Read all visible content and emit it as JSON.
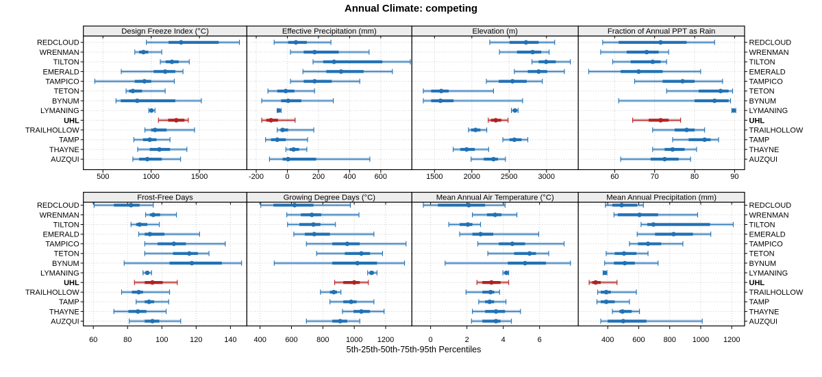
{
  "title": "Annual Climate: competing",
  "footer": "5th-25th-50th-75th-95th Percentiles",
  "highlight_station": "UHL",
  "stations": [
    "REDCLOUD",
    "WRENMAN",
    "TILTON",
    "EMERALD",
    "TAMPICO",
    "TETON",
    "BYNUM",
    "LYMANING",
    "UHL",
    "TRAILHOLLOW",
    "TAMP",
    "THAYNE",
    "AUZQUI"
  ],
  "colors": {
    "series": "#2171B5",
    "highlight": "#B22222",
    "gridline": "#C9C9C9",
    "header_fill": "#EDEDED",
    "border": "#000000",
    "text": "#000000"
  },
  "chart_data": {
    "type": "interval",
    "percentiles": [
      "5th",
      "25th",
      "50th",
      "75th",
      "95th"
    ],
    "layout": {
      "rows": 2,
      "cols": 4
    },
    "panels": [
      {
        "title": "Design Freeze Index (°C)",
        "xlim": [
          297,
          1992
        ],
        "ticks": [
          500,
          1000,
          1500
        ],
        "values": [
          [
            950,
            1180,
            1310,
            1700,
            1915
          ],
          [
            830,
            875,
            920,
            970,
            1110
          ],
          [
            1095,
            1150,
            1215,
            1285,
            1395
          ],
          [
            690,
            1025,
            1145,
            1250,
            1330
          ],
          [
            415,
            830,
            930,
            1000,
            1240
          ],
          [
            740,
            770,
            810,
            905,
            1145
          ],
          [
            635,
            685,
            855,
            1250,
            1520
          ],
          [
            975,
            990,
            1003,
            1015,
            1040
          ],
          [
            1075,
            1175,
            1260,
            1345,
            1385
          ],
          [
            935,
            1000,
            1040,
            1160,
            1450
          ],
          [
            820,
            915,
            985,
            1055,
            1195
          ],
          [
            860,
            985,
            1085,
            1195,
            1370
          ],
          [
            810,
            875,
            960,
            1110,
            1305
          ]
        ]
      },
      {
        "title": "Effective Precipitation (mm)",
        "xlim": [
          -260,
          800
        ],
        "ticks": [
          -200,
          0,
          200,
          400,
          600
        ],
        "values": [
          [
            -85,
            5,
            55,
            125,
            280
          ],
          [
            20,
            105,
            175,
            330,
            525
          ],
          [
            165,
            230,
            300,
            610,
            790
          ],
          [
            100,
            250,
            345,
            490,
            675
          ],
          [
            20,
            105,
            175,
            285,
            465
          ],
          [
            -125,
            -65,
            -10,
            45,
            175
          ],
          [
            -165,
            -40,
            5,
            90,
            295
          ],
          [
            -65,
            -60,
            -55,
            -49,
            -40
          ],
          [
            -165,
            -135,
            -105,
            -60,
            50
          ],
          [
            -65,
            -45,
            -30,
            5,
            170
          ],
          [
            -140,
            -105,
            -65,
            -10,
            130
          ],
          [
            -10,
            15,
            40,
            75,
            125
          ],
          [
            -115,
            -30,
            5,
            185,
            530
          ]
        ]
      },
      {
        "title": "Elevation (m)",
        "xlim": [
          1197,
          3426
        ],
        "ticks": [
          1500,
          2000,
          2500,
          3000
        ],
        "values": [
          [
            2240,
            2505,
            2725,
            2895,
            3110
          ],
          [
            2370,
            2605,
            2815,
            2930,
            3035
          ],
          [
            2805,
            2895,
            2995,
            3125,
            3320
          ],
          [
            2570,
            2750,
            2895,
            3010,
            3240
          ],
          [
            2195,
            2360,
            2545,
            2735,
            2945
          ],
          [
            1350,
            1455,
            1590,
            1690,
            2290
          ],
          [
            1350,
            1455,
            1580,
            1755,
            2680
          ],
          [
            2530,
            2560,
            2578,
            2598,
            2620
          ],
          [
            2220,
            2255,
            2320,
            2395,
            2485
          ],
          [
            1955,
            1990,
            2050,
            2115,
            2200
          ],
          [
            2415,
            2505,
            2570,
            2665,
            2750
          ],
          [
            1750,
            1845,
            1930,
            2040,
            2225
          ],
          [
            1990,
            2160,
            2290,
            2350,
            2450
          ]
        ]
      },
      {
        "title": "Fraction of Annual PPT as Rain",
        "xlim": [
          50.9,
          92.5
        ],
        "ticks": [
          60,
          70,
          80,
          90
        ],
        "values": [
          [
            57,
            61,
            71.5,
            78,
            85
          ],
          [
            56.5,
            63,
            68,
            71,
            73.5
          ],
          [
            59.5,
            64,
            69.5,
            71.5,
            73
          ],
          [
            53.5,
            61.5,
            66,
            72,
            81.5
          ],
          [
            65,
            72,
            77,
            80,
            87
          ],
          [
            73,
            81,
            86.5,
            88.5,
            89.5
          ],
          [
            61,
            80,
            85,
            88.5,
            89
          ],
          [
            89.3,
            89.6,
            89.8,
            90,
            90.3
          ],
          [
            64.5,
            68.5,
            71.5,
            73.5,
            76.5
          ],
          [
            69.5,
            75,
            78,
            80,
            82.5
          ],
          [
            74.5,
            78.5,
            82.5,
            84,
            86
          ],
          [
            69.5,
            72.5,
            74.5,
            77.5,
            80.5
          ],
          [
            61.5,
            69,
            72.5,
            76,
            79
          ]
        ]
      },
      {
        "title": "Frost-Free Days",
        "xlim": [
          54.2,
          149.6
        ],
        "ticks": [
          60,
          80,
          100,
          120,
          140
        ],
        "values": [
          [
            60.5,
            72,
            82,
            87,
            95
          ],
          [
            90.5,
            93,
            95,
            99,
            108.5
          ],
          [
            82,
            85,
            87,
            91.5,
            98.5
          ],
          [
            86.5,
            90,
            93,
            101.5,
            122
          ],
          [
            90,
            97.5,
            107,
            114,
            137
          ],
          [
            90,
            106.5,
            116,
            121,
            127.5
          ],
          [
            78,
            104.5,
            117.5,
            135,
            146.5
          ],
          [
            89,
            90.5,
            91.5,
            92.5,
            94
          ],
          [
            84,
            90,
            94.5,
            100.5,
            109
          ],
          [
            76.5,
            82.5,
            86.5,
            89,
            104.5
          ],
          [
            85,
            90,
            92.5,
            95.5,
            104
          ],
          [
            72,
            80.5,
            86,
            91,
            102.5
          ],
          [
            81,
            90,
            94.5,
            98.5,
            111
          ]
        ]
      },
      {
        "title": "Growing Degree Days (°C)",
        "xlim": [
          316,
          1367
        ],
        "ticks": [
          400,
          600,
          800,
          1000,
          1200
        ],
        "values": [
          [
            405,
            485,
            620,
            740,
            975
          ],
          [
            570,
            660,
            730,
            790,
            1030
          ],
          [
            575,
            650,
            740,
            785,
            880
          ],
          [
            615,
            685,
            745,
            845,
            1125
          ],
          [
            695,
            860,
            955,
            1035,
            1330
          ],
          [
            760,
            940,
            1045,
            1100,
            1180
          ],
          [
            490,
            860,
            1020,
            1145,
            1320
          ],
          [
            1085,
            1100,
            1110,
            1125,
            1145
          ],
          [
            875,
            930,
            1000,
            1035,
            1090
          ],
          [
            785,
            845,
            870,
            890,
            915
          ],
          [
            845,
            930,
            980,
            1015,
            1125
          ],
          [
            925,
            995,
            1045,
            1100,
            1190
          ],
          [
            695,
            860,
            910,
            955,
            1035
          ]
        ]
      },
      {
        "title": "Mean Annual Air Temperature (°C)",
        "xlim": [
          -1.03,
          8.13
        ],
        "ticks": [
          0,
          2,
          4,
          6
        ],
        "values": [
          [
            -0.4,
            0.4,
            2.1,
            3.0,
            4.1
          ],
          [
            2.3,
            3.1,
            3.55,
            3.9,
            4.75
          ],
          [
            1.0,
            1.6,
            2.05,
            2.3,
            2.75
          ],
          [
            1.6,
            2.3,
            2.75,
            3.45,
            5.95
          ],
          [
            2.6,
            3.75,
            4.5,
            5.2,
            7.35
          ],
          [
            3.15,
            4.6,
            5.45,
            5.8,
            6.5
          ],
          [
            0.8,
            4.25,
            5.2,
            6.35,
            7.7
          ],
          [
            3.98,
            4.1,
            4.17,
            4.25,
            4.3
          ],
          [
            2.55,
            2.85,
            3.35,
            3.85,
            4.3
          ],
          [
            1.95,
            2.85,
            3.3,
            3.5,
            3.8
          ],
          [
            2.65,
            3.0,
            3.25,
            3.5,
            4.15
          ],
          [
            2.3,
            3.0,
            3.6,
            4.1,
            4.95
          ],
          [
            2.25,
            2.85,
            3.6,
            3.85,
            4.45
          ]
        ]
      },
      {
        "title": "Mean Annual Precipitation (mm)",
        "xlim": [
          210,
          1283
        ],
        "ticks": [
          400,
          600,
          800,
          1000,
          1200
        ],
        "values": [
          [
            385,
            430,
            490,
            590,
            630
          ],
          [
            440,
            465,
            605,
            725,
            980
          ],
          [
            615,
            655,
            695,
            1060,
            1210
          ],
          [
            590,
            705,
            825,
            950,
            1065
          ],
          [
            540,
            595,
            660,
            745,
            885
          ],
          [
            390,
            445,
            505,
            585,
            660
          ],
          [
            380,
            440,
            510,
            575,
            725
          ],
          [
            370,
            378,
            382,
            387,
            395
          ],
          [
            280,
            300,
            322,
            355,
            460
          ],
          [
            335,
            355,
            390,
            420,
            585
          ],
          [
            330,
            355,
            390,
            445,
            540
          ],
          [
            430,
            475,
            495,
            555,
            605
          ],
          [
            355,
            400,
            500,
            650,
            1010
          ]
        ]
      }
    ]
  }
}
